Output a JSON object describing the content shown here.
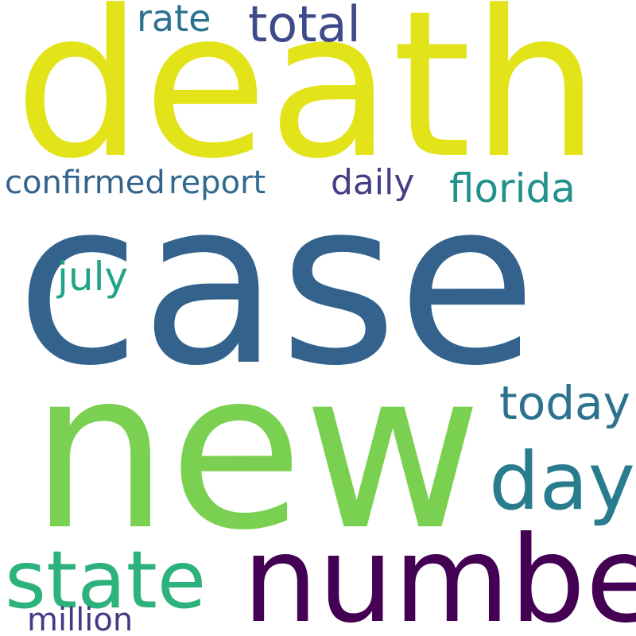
{
  "words": [
    {
      "text": "death",
      "color": "#e2e319"
    },
    {
      "text": "case",
      "color": "#33638d"
    },
    {
      "text": "new",
      "color": "#7ad151"
    },
    {
      "text": "number",
      "color": "#440154"
    },
    {
      "text": "state",
      "color": "#2db27d"
    },
    {
      "text": "day",
      "color": "#287c8e"
    },
    {
      "text": "today",
      "color": "#2c728e"
    },
    {
      "text": "florida",
      "color": "#21918c"
    },
    {
      "text": "daily",
      "color": "#433e85"
    },
    {
      "text": "report",
      "color": "#306a8e"
    },
    {
      "text": "confirmed",
      "color": "#33638d"
    },
    {
      "text": "july",
      "color": "#20a486"
    },
    {
      "text": "total",
      "color": "#3e4a89"
    },
    {
      "text": "rate",
      "color": "#2c728e"
    },
    {
      "text": "million",
      "color": "#443983"
    }
  ]
}
